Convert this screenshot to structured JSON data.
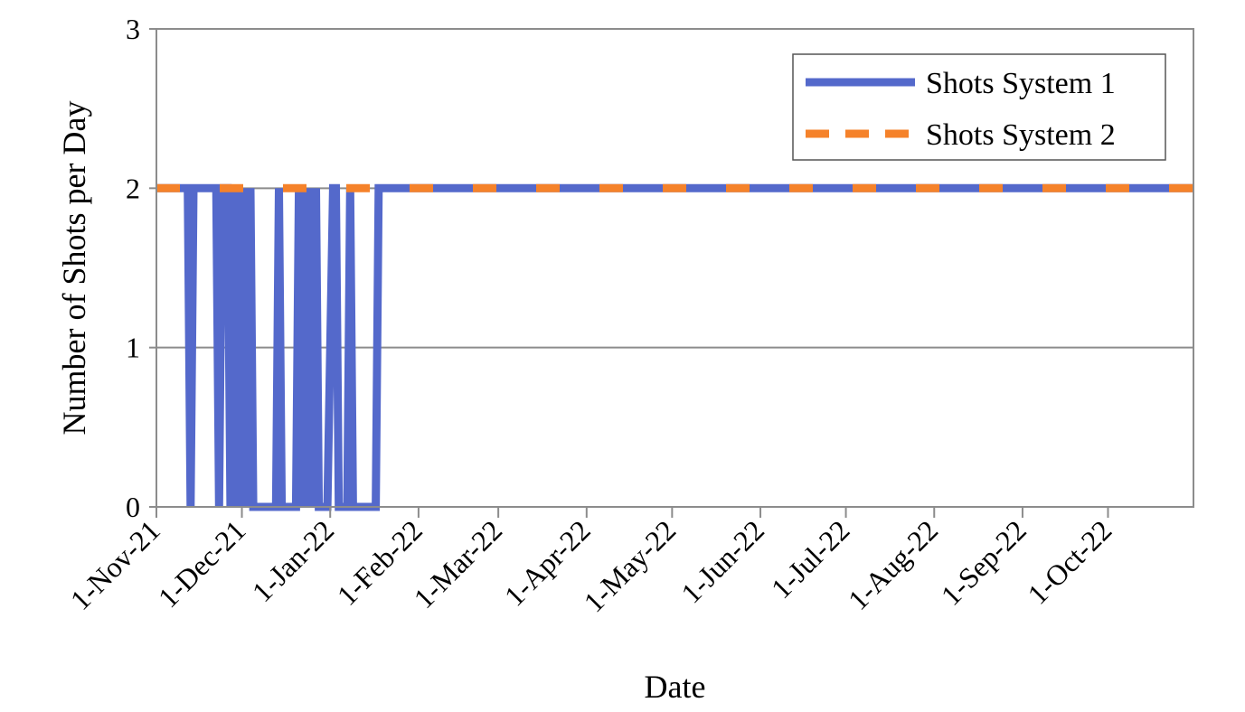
{
  "chart_data": {
    "type": "line",
    "xlabel": "Date",
    "ylabel": "Number of Shots per Day",
    "ylim": [
      0,
      3
    ],
    "xlim": [
      "2021-11-01",
      "2022-10-31"
    ],
    "yticks": [
      "0",
      "1",
      "2",
      "3"
    ],
    "xticks": [
      {
        "label": "1-Nov-21",
        "date": "2021-11-01"
      },
      {
        "label": "1-Dec-21",
        "date": "2021-12-01"
      },
      {
        "label": "1-Jan-22",
        "date": "2022-01-01"
      },
      {
        "label": "1-Feb-22",
        "date": "2022-02-01"
      },
      {
        "label": "1-Mar-22",
        "date": "2022-03-01"
      },
      {
        "label": "1-Apr-22",
        "date": "2022-04-01"
      },
      {
        "label": "1-May-22",
        "date": "2022-05-01"
      },
      {
        "label": "1-Jun-22",
        "date": "2022-06-01"
      },
      {
        "label": "1-Jul-22",
        "date": "2022-07-01"
      },
      {
        "label": "1-Aug-22",
        "date": "2022-08-01"
      },
      {
        "label": "1-Sep-22",
        "date": "2022-09-01"
      },
      {
        "label": "1-Oct-22",
        "date": "2022-10-01"
      }
    ],
    "grid": {
      "horizontal": true,
      "vertical": false
    },
    "legend": {
      "position": "top-right"
    },
    "series": [
      {
        "name": "Shots System 1",
        "color": "#5469CB",
        "style": "solid",
        "points": [
          [
            "2021-11-01",
            2
          ],
          [
            "2021-11-12",
            2
          ],
          [
            "2021-11-13",
            0
          ],
          [
            "2021-11-14",
            2
          ],
          [
            "2021-11-22",
            2
          ],
          [
            "2021-11-23",
            0
          ],
          [
            "2021-11-24",
            2
          ],
          [
            "2021-11-26",
            2
          ],
          [
            "2021-11-27",
            0
          ],
          [
            "2021-11-28",
            2
          ],
          [
            "2021-11-29",
            0
          ],
          [
            "2021-11-30",
            2
          ],
          [
            "2021-12-01",
            0
          ],
          [
            "2021-12-02",
            2
          ],
          [
            "2021-12-03",
            0
          ],
          [
            "2021-12-04",
            2
          ],
          [
            "2021-12-05",
            0
          ],
          [
            "2021-12-13",
            0
          ],
          [
            "2021-12-14",
            2
          ],
          [
            "2021-12-15",
            0
          ],
          [
            "2021-12-20",
            0
          ],
          [
            "2021-12-21",
            2
          ],
          [
            "2021-12-22",
            0
          ],
          [
            "2021-12-23",
            2
          ],
          [
            "2021-12-24",
            0
          ],
          [
            "2021-12-25",
            2
          ],
          [
            "2021-12-26",
            0
          ],
          [
            "2021-12-27",
            2
          ],
          [
            "2021-12-28",
            0
          ],
          [
            "2021-12-29",
            0
          ],
          [
            "2021-12-31",
            0
          ],
          [
            "2022-01-02",
            2
          ],
          [
            "2022-01-03",
            2
          ],
          [
            "2022-01-04",
            0
          ],
          [
            "2022-01-07",
            0
          ],
          [
            "2022-01-08",
            2
          ],
          [
            "2022-01-09",
            0
          ],
          [
            "2022-01-17",
            0
          ],
          [
            "2022-01-18",
            2
          ],
          [
            "2022-10-31",
            2
          ]
        ]
      },
      {
        "name": "Shots System 2",
        "color": "#F5822A",
        "style": "dashed",
        "points": [
          [
            "2021-11-01",
            2
          ],
          [
            "2022-10-31",
            2
          ]
        ]
      }
    ]
  }
}
